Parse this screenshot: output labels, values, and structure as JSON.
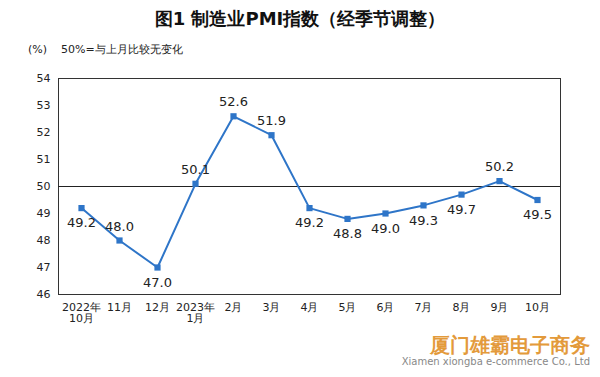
{
  "chart_data": {
    "type": "line",
    "title": "图1 制造业PMI指数（经季节调整）",
    "y_unit": "(%)",
    "annotation": "50%=与上月比较无变化",
    "categories": [
      "2022年\n10月",
      "11月",
      "12月",
      "2023年\n1月",
      "2月",
      "3月",
      "4月",
      "5月",
      "6月",
      "7月",
      "8月",
      "9月",
      "10月"
    ],
    "values": [
      49.2,
      48.0,
      47.0,
      50.1,
      52.6,
      51.9,
      49.2,
      48.8,
      49.0,
      49.3,
      49.7,
      50.2,
      49.5
    ],
    "value_labels": [
      "49.2",
      "48.0",
      "47.0",
      "50.1",
      "52.6",
      "51.9",
      "49.2",
      "48.8",
      "49.0",
      "49.3",
      "49.7",
      "50.2",
      "49.5"
    ],
    "color": "#2e75c8",
    "marker": "square",
    "data_labels": true,
    "reference_line": 50,
    "ylim": [
      46,
      54
    ],
    "yticks": [
      46,
      47,
      48,
      49,
      50,
      51,
      52,
      53,
      54
    ],
    "grid": false,
    "watermark": [
      "厦门雄霸电子商务",
      "Xiamen xiongba e-commerce Co., Ltd"
    ]
  }
}
